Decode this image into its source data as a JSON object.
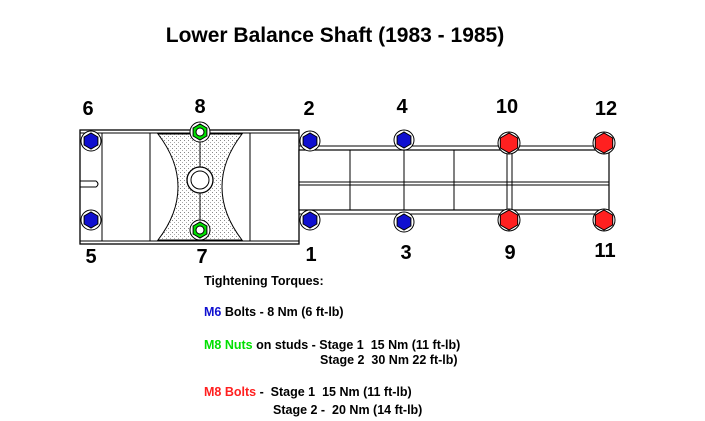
{
  "title": "Lower Balance Shaft (1983 - 1985)",
  "colors": {
    "m6": "#1010d0",
    "m8_nuts": "#00e000",
    "m8_bolts": "#ff2020"
  },
  "bolts": [
    {
      "number": "6",
      "type": "m6"
    },
    {
      "number": "8",
      "type": "m8_nuts"
    },
    {
      "number": "2",
      "type": "m6"
    },
    {
      "number": "4",
      "type": "m6"
    },
    {
      "number": "10",
      "type": "m8_bolts"
    },
    {
      "number": "12",
      "type": "m8_bolts"
    },
    {
      "number": "5",
      "type": "m6"
    },
    {
      "number": "7",
      "type": "m8_nuts"
    },
    {
      "number": "1",
      "type": "m6"
    },
    {
      "number": "3",
      "type": "m6"
    },
    {
      "number": "9",
      "type": "m8_bolts"
    },
    {
      "number": "11",
      "type": "m8_bolts"
    }
  ],
  "legend": {
    "heading": "Tightening Torques:",
    "m6": {
      "label": "M6",
      "text": " Bolts - 8 Nm (6 ft-lb)"
    },
    "m8_nuts": {
      "label": "M8 Nuts",
      "text": " on studs - Stage 1  15 Nm (11 ft-lb)",
      "stage2": "Stage 2  30 Nm 22 ft-lb)"
    },
    "m8_bolts": {
      "label": "M8 Bolts",
      "text": " -  Stage 1  15 Nm (11 ft-lb)",
      "stage2": "Stage 2 -  20 Nm (14 ft-lb)"
    }
  }
}
